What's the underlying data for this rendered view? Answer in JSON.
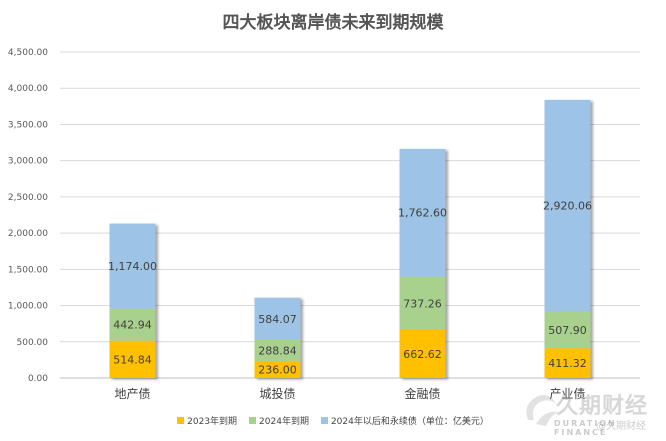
{
  "chart_data": {
    "type": "bar",
    "stacked": true,
    "title": "四大板块离岸债未来到期规模",
    "categories": [
      "地产债",
      "城投债",
      "金融债",
      "产业债"
    ],
    "series": [
      {
        "name": "2023年到期",
        "color": "#FFC000",
        "values": [
          514.84,
          236.0,
          662.62,
          411.32
        ]
      },
      {
        "name": "2024年到期",
        "color": "#A9D18E",
        "values": [
          442.94,
          288.84,
          737.26,
          507.9
        ]
      },
      {
        "name": "2024年以后和永续债（单位：亿美元）",
        "color": "#9DC3E6",
        "values": [
          1174.0,
          584.07,
          1762.6,
          2920.06
        ]
      }
    ],
    "ylim": [
      0,
      4500
    ],
    "yticks": [
      0,
      500,
      1000,
      1500,
      2000,
      2500,
      3000,
      3500,
      4000,
      4500
    ],
    "ytick_labels": [
      "0.00",
      "500.00",
      "1,000.00",
      "1,500.00",
      "2,000.00",
      "2,500.00",
      "3,000.00",
      "3,500.00",
      "4,000.00",
      "4,500.00"
    ],
    "data_labels": [
      [
        "514.84",
        "442.94",
        "1,174.00"
      ],
      [
        "236.00",
        "288.84",
        "584.07"
      ],
      [
        "662.62",
        "737.26",
        "1,762.60"
      ],
      [
        "411.32",
        "507.90",
        "2,920.06"
      ]
    ],
    "grid": true,
    "legend_position": "bottom"
  },
  "watermark": {
    "main": "久期财经",
    "sub": "DURATION FINANCE",
    "handle": "@久期财经"
  }
}
